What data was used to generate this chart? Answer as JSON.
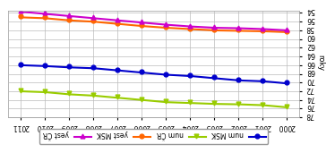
{
  "years": [
    2000,
    2001,
    2002,
    2003,
    2004,
    2005,
    2006,
    2007,
    2008,
    2009,
    2010,
    2011
  ],
  "series": {
    "num_MSK": [
      70.0,
      69.5,
      69.3,
      68.8,
      68.3,
      68.0,
      67.5,
      67.0,
      66.5,
      66.3,
      66.0,
      65.8
    ],
    "num_CR": [
      75.5,
      75.0,
      74.8,
      74.7,
      74.5,
      74.3,
      73.8,
      73.3,
      72.8,
      72.5,
      72.0,
      71.8
    ],
    "yest_MSK": [
      58.2,
      58.0,
      57.9,
      57.8,
      57.5,
      57.2,
      56.8,
      56.3,
      55.8,
      55.5,
      55.0,
      54.8
    ],
    "yest_CR": [
      57.8,
      57.5,
      57.3,
      57.2,
      56.9,
      56.5,
      56.0,
      55.5,
      55.0,
      54.5,
      54.0,
      53.5
    ]
  },
  "colors": {
    "num_MSK": "#0000cc",
    "num_CR": "#99cc00",
    "yest_MSK": "#ff6600",
    "yest_CR": "#cc00cc"
  },
  "labels": {
    "num_MSK": "num MSK",
    "num_CR": "num ČR",
    "yest_MSK": "yest MSK",
    "yest_CR": "yest ČR"
  },
  "ylabel": "roky",
  "ylim": [
    53.5,
    78.0
  ],
  "yticks": [
    54,
    56,
    58,
    60,
    62,
    64,
    66,
    68,
    70,
    72,
    74,
    76,
    78
  ],
  "background_color": "#ffffff",
  "grid_color": "#bbbbbb"
}
